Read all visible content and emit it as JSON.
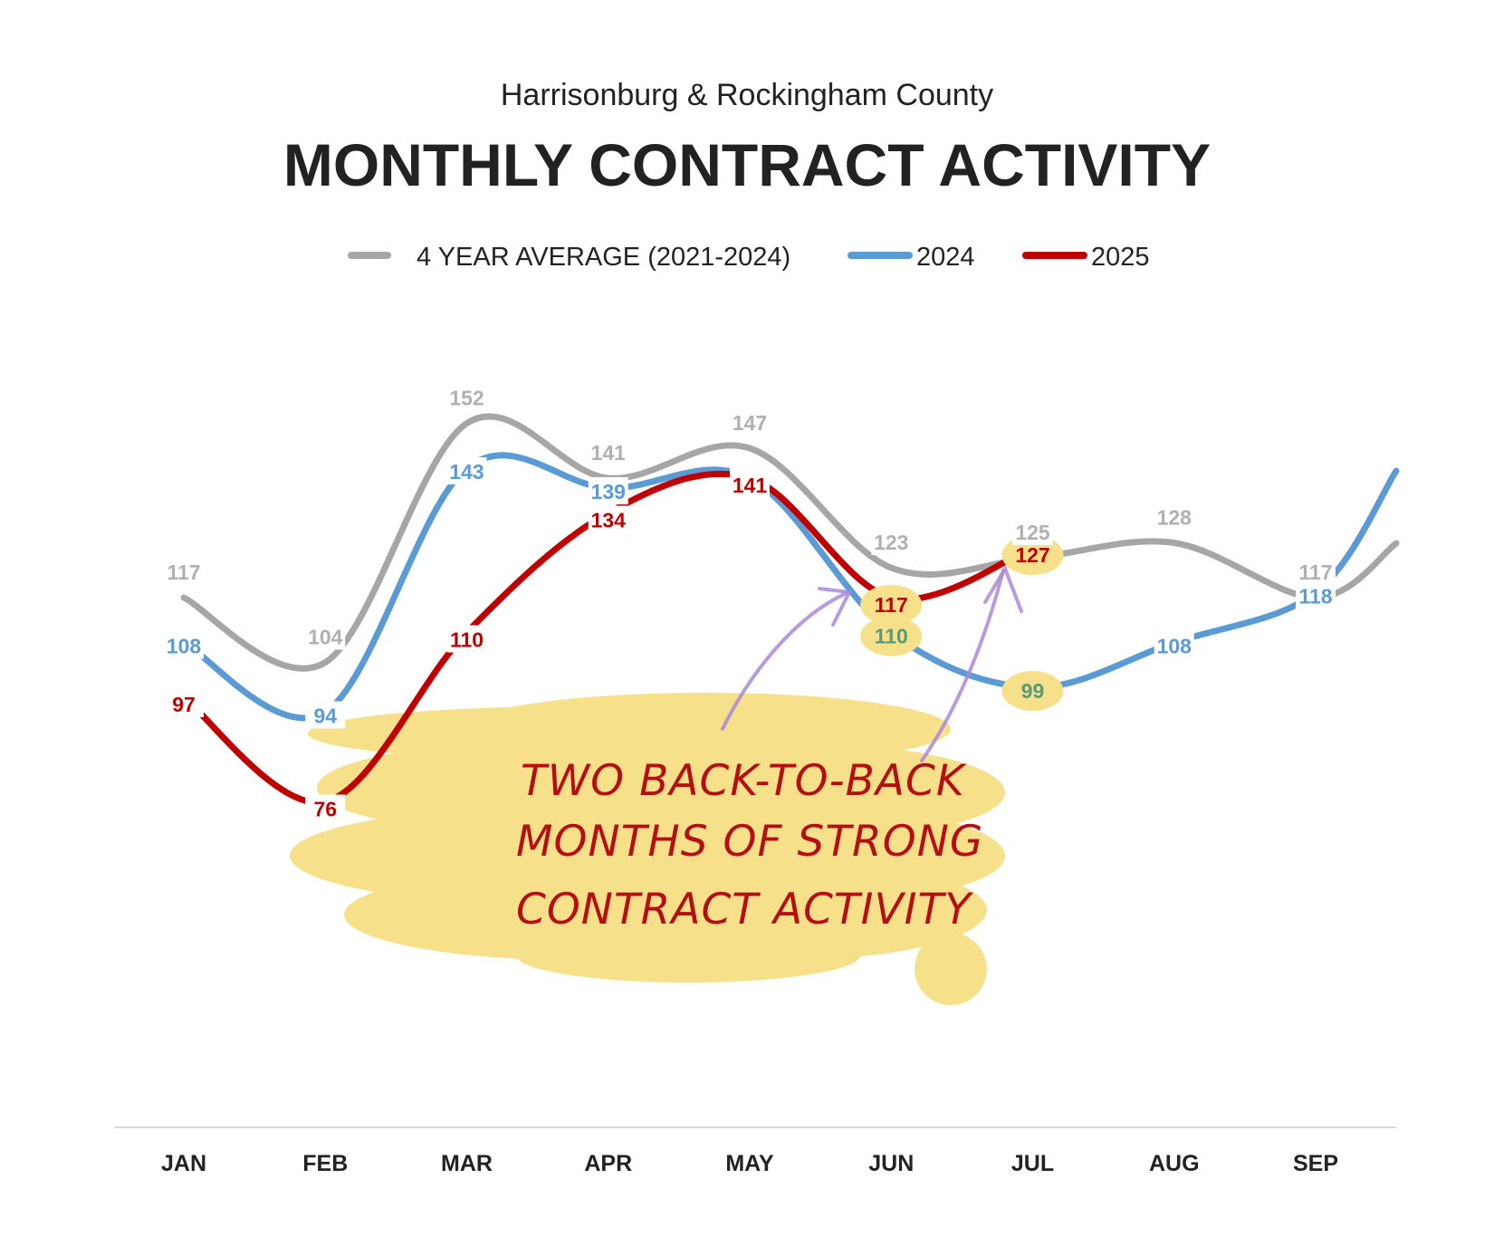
{
  "chart_data": {
    "type": "line",
    "subtitle": "Harrisonburg & Rockingham County",
    "title": "MONTHLY CONTRACT ACTIVITY",
    "categories": [
      "JAN",
      "FEB",
      "MAR",
      "APR",
      "MAY",
      "JUN",
      "JUL",
      "AUG",
      "SEP"
    ],
    "ylim": [
      60,
      160
    ],
    "grid": false,
    "legend_position": "top",
    "series": [
      {
        "name": "4 YEAR AVERAGE (2021-2024)",
        "color": "#a6a6a6",
        "label_color": "#b0b0b0",
        "values": [
          117,
          104,
          152,
          141,
          147,
          123,
          125,
          128,
          117
        ]
      },
      {
        "name": "2024",
        "color": "#5b9bd5",
        "label_color": "#5b9bd5",
        "values": [
          108,
          94,
          143,
          139,
          141,
          110,
          99,
          108,
          118
        ]
      },
      {
        "name": "2025",
        "color": "#c00000",
        "label_color": "#c00000",
        "values": [
          97,
          76,
          110,
          134,
          141,
          117,
          127,
          null,
          null
        ]
      }
    ],
    "highlighted_labels": [
      {
        "series": 2,
        "index": 5,
        "value": 117
      },
      {
        "series": 2,
        "index": 6,
        "value": 127
      },
      {
        "series": 1,
        "index": 5,
        "value": 110
      },
      {
        "series": 1,
        "index": 6,
        "value": 99
      }
    ],
    "annotation": {
      "lines": [
        "TWO BACK-TO-BACK",
        "MONTHS OF STRONG",
        "CONTRACT ACTIVITY"
      ],
      "highlight_color": "#f7e08a",
      "arrow_color": "#a98ad8"
    }
  }
}
